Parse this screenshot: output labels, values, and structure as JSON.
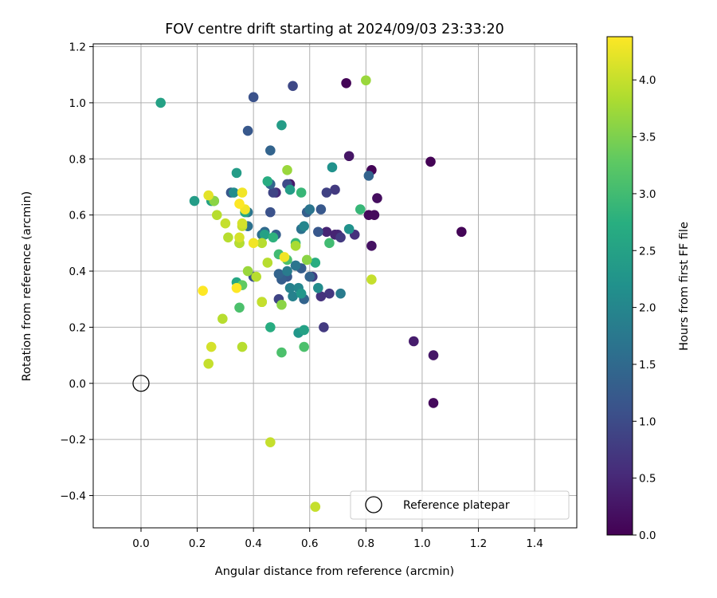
{
  "chart_data": {
    "type": "scatter",
    "title": "FOV centre drift starting at 2024/09/03 23:33:20",
    "xlabel": "Angular distance from reference (arcmin)",
    "ylabel": "Rotation from reference (arcmin)",
    "xlim": [
      -0.17,
      1.55
    ],
    "ylim": [
      -0.515,
      1.21
    ],
    "xticks": [
      0.0,
      0.2,
      0.4,
      0.6,
      0.8,
      1.0,
      1.2,
      1.4
    ],
    "xtick_labels": [
      "0.0",
      "0.2",
      "0.4",
      "0.6",
      "0.8",
      "1.0",
      "1.2",
      "1.4"
    ],
    "yticks": [
      -0.4,
      -0.2,
      0.0,
      0.2,
      0.4,
      0.6,
      0.8,
      1.0,
      1.2
    ],
    "ytick_labels": [
      "−0.4",
      "−0.2",
      "0.0",
      "0.2",
      "0.4",
      "0.6",
      "0.8",
      "1.0",
      "1.2"
    ],
    "grid": true,
    "colorbar": {
      "label": "Hours from first FF file",
      "colormap": "viridis",
      "range": [
        0.0,
        4.38
      ],
      "ticks": [
        0.0,
        0.5,
        1.0,
        1.5,
        2.0,
        2.5,
        3.0,
        3.5,
        4.0
      ],
      "tick_labels": [
        "0.0",
        "0.5",
        "1.0",
        "1.5",
        "2.0",
        "2.5",
        "3.0",
        "3.5",
        "4.0"
      ]
    },
    "legend": {
      "entries": [
        "Reference platepar"
      ],
      "placement": "lower-right"
    },
    "reference_point": {
      "x": 0.0,
      "y": 0.0
    },
    "series": [
      {
        "x": [
          0.73,
          1.03,
          1.14,
          0.82,
          0.84,
          0.81,
          0.83,
          0.97,
          1.04,
          1.04,
          0.74,
          0.7,
          0.69,
          0.66,
          0.53,
          0.48,
          0.76,
          0.82,
          0.71,
          0.67,
          0.64,
          0.69,
          0.66,
          0.61,
          0.65,
          0.49,
          0.47,
          0.54,
          0.4,
          0.38,
          0.32,
          0.4,
          0.52,
          0.46,
          0.57,
          0.57,
          0.55,
          0.52,
          0.58,
          0.64,
          0.63,
          0.81,
          0.59,
          0.6,
          0.5,
          0.48,
          0.46,
          0.46,
          0.49,
          0.44,
          0.43,
          0.38,
          0.38,
          0.55,
          0.57,
          0.71,
          0.6,
          0.54,
          0.52,
          0.53,
          0.56,
          0.58,
          0.63,
          0.74,
          0.56,
          0.53,
          0.58,
          0.68,
          0.5,
          0.57,
          0.34,
          0.25,
          0.26,
          0.33,
          0.19,
          0.07,
          0.37,
          0.34,
          0.44,
          0.35,
          0.62,
          0.45,
          0.46,
          0.47,
          0.57,
          0.78,
          0.55,
          0.49,
          0.67,
          0.52,
          0.58,
          0.35,
          0.5,
          0.43,
          0.36,
          0.26,
          0.59,
          0.5,
          0.8,
          0.55,
          0.52,
          0.38,
          0.27,
          0.29,
          0.31,
          0.35,
          0.36,
          0.41,
          0.43,
          0.45,
          0.3,
          0.36,
          0.43,
          0.46,
          0.82,
          0.62,
          0.24,
          0.25,
          0.36,
          0.35,
          0.24,
          0.36,
          0.37,
          0.4,
          0.51,
          0.22,
          0.35,
          0.34
        ],
        "y": [
          1.07,
          0.79,
          0.54,
          0.76,
          0.66,
          0.6,
          0.6,
          0.15,
          0.1,
          -0.07,
          0.81,
          0.53,
          0.53,
          0.54,
          0.71,
          0.68,
          0.53,
          0.49,
          0.52,
          0.32,
          0.31,
          0.69,
          0.68,
          0.38,
          0.2,
          0.3,
          0.68,
          1.06,
          1.02,
          0.9,
          0.68,
          0.38,
          0.71,
          0.61,
          0.41,
          0.41,
          0.42,
          0.38,
          0.3,
          0.62,
          0.54,
          0.74,
          0.61,
          0.38,
          0.37,
          0.53,
          0.83,
          0.71,
          0.39,
          0.54,
          0.53,
          0.56,
          0.61,
          0.42,
          0.55,
          0.32,
          0.62,
          0.31,
          0.4,
          0.34,
          0.34,
          0.56,
          0.34,
          0.55,
          0.18,
          0.69,
          0.19,
          0.77,
          0.92,
          0.32,
          0.75,
          0.65,
          0.65,
          0.68,
          0.65,
          1.0,
          0.61,
          0.36,
          0.53,
          0.5,
          0.43,
          0.72,
          0.2,
          0.52,
          0.68,
          0.62,
          0.5,
          0.46,
          0.5,
          0.44,
          0.13,
          0.27,
          0.11,
          0.29,
          0.35,
          0.65,
          0.44,
          0.28,
          1.08,
          0.49,
          0.76,
          0.4,
          0.6,
          0.23,
          0.52,
          0.5,
          0.13,
          0.38,
          0.5,
          0.43,
          0.57,
          0.56,
          0.29,
          -0.21,
          0.37,
          -0.44,
          0.07,
          0.13,
          0.57,
          0.52,
          0.67,
          0.68,
          0.62,
          0.5,
          0.45,
          0.33,
          0.64,
          0.34
        ],
        "color_values": [
          0.05,
          0.02,
          0.05,
          0.05,
          0.16,
          0.09,
          0.12,
          0.35,
          0.27,
          0.12,
          0.25,
          0.5,
          0.45,
          0.45,
          0.3,
          0.55,
          0.6,
          0.2,
          0.75,
          0.7,
          0.65,
          0.75,
          0.85,
          0.8,
          0.75,
          0.9,
          0.9,
          0.95,
          1.1,
          1.2,
          1.2,
          1.1,
          1.0,
          1.1,
          1.2,
          1.3,
          1.3,
          1.2,
          1.4,
          1.2,
          1.2,
          1.4,
          1.3,
          1.4,
          1.3,
          1.3,
          1.4,
          1.4,
          1.4,
          1.5,
          1.6,
          1.6,
          1.7,
          1.7,
          1.65,
          1.8,
          1.7,
          1.9,
          1.8,
          1.9,
          2.0,
          2.0,
          2.1,
          2.2,
          2.3,
          2.4,
          2.5,
          2.2,
          2.4,
          2.3,
          2.4,
          2.5,
          2.2,
          2.1,
          2.4,
          2.5,
          2.6,
          2.6,
          2.5,
          2.55,
          2.7,
          2.7,
          2.7,
          2.8,
          2.9,
          2.9,
          2.9,
          3.0,
          3.0,
          3.1,
          3.1,
          3.1,
          3.1,
          3.2,
          3.3,
          3.6,
          3.6,
          3.6,
          3.7,
          3.8,
          3.7,
          3.7,
          3.9,
          3.9,
          3.9,
          3.9,
          3.9,
          3.9,
          3.9,
          3.9,
          4.0,
          4.0,
          4.0,
          4.0,
          4.0,
          4.0,
          4.0,
          4.1,
          4.1,
          4.1,
          4.2,
          4.3,
          4.3,
          4.3,
          4.3,
          4.4,
          4.4,
          4.4
        ]
      }
    ]
  }
}
